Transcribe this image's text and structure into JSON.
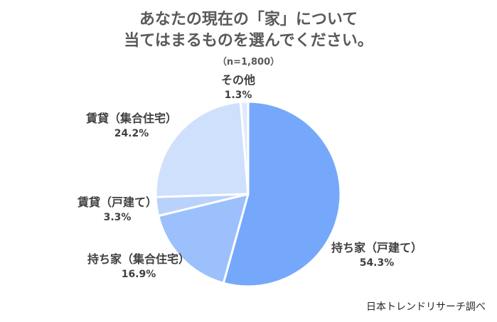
{
  "title_line1": "あなたの現在の「家」について",
  "title_line2": "当てはまるものを選んでください。",
  "subtitle": "（n=1,800）",
  "source": "日本トレンドリサーチ調べ",
  "chart_data": {
    "type": "pie",
    "title": "あなたの現在の「家」について 当てはまるものを選んでください。",
    "slices": [
      {
        "label": "持ち家（戸建て）",
        "value": 54.3,
        "display": "54.3%",
        "color": "#75a8fb"
      },
      {
        "label": "持ち家（集合住宅）",
        "value": 16.9,
        "display": "16.9%",
        "color": "#9cc0fb"
      },
      {
        "label": "賃貸（戸建て）",
        "value": 3.3,
        "display": "3.3%",
        "color": "#b8d2fb"
      },
      {
        "label": "賃貸（集合住宅）",
        "value": 24.2,
        "display": "24.2%",
        "color": "#cfe0fc"
      },
      {
        "label": "その他",
        "value": 1.3,
        "display": "1.3%",
        "color": "#dfeafd"
      }
    ]
  }
}
